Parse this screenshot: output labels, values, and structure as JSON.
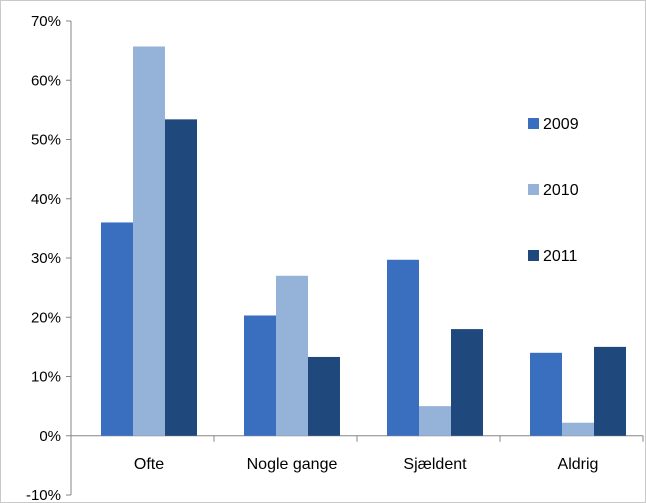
{
  "chart_data": {
    "type": "bar",
    "title": "",
    "xlabel": "",
    "ylabel": "",
    "categories": [
      "Ofte",
      "Nogle gange",
      "Sjældent",
      "Aldrig"
    ],
    "series": [
      {
        "name": "2009",
        "color": "#3a6fbf",
        "values": [
          0.36,
          0.203,
          0.297,
          0.14
        ]
      },
      {
        "name": "2010",
        "color": "#95b3d9",
        "values": [
          0.657,
          0.27,
          0.05,
          0.022
        ]
      },
      {
        "name": "2011",
        "color": "#1f497d",
        "values": [
          0.534,
          0.133,
          0.18,
          0.15
        ]
      }
    ],
    "ylim": [
      -0.1,
      0.7
    ],
    "yticks": [
      -0.1,
      0,
      0.1,
      0.2,
      0.3,
      0.4,
      0.5,
      0.6,
      0.7
    ],
    "ytick_labels": [
      "-10%",
      "0%",
      "10%",
      "20%",
      "30%",
      "40%",
      "50%",
      "60%",
      "70%"
    ],
    "grid": false,
    "legend_position": "right"
  }
}
